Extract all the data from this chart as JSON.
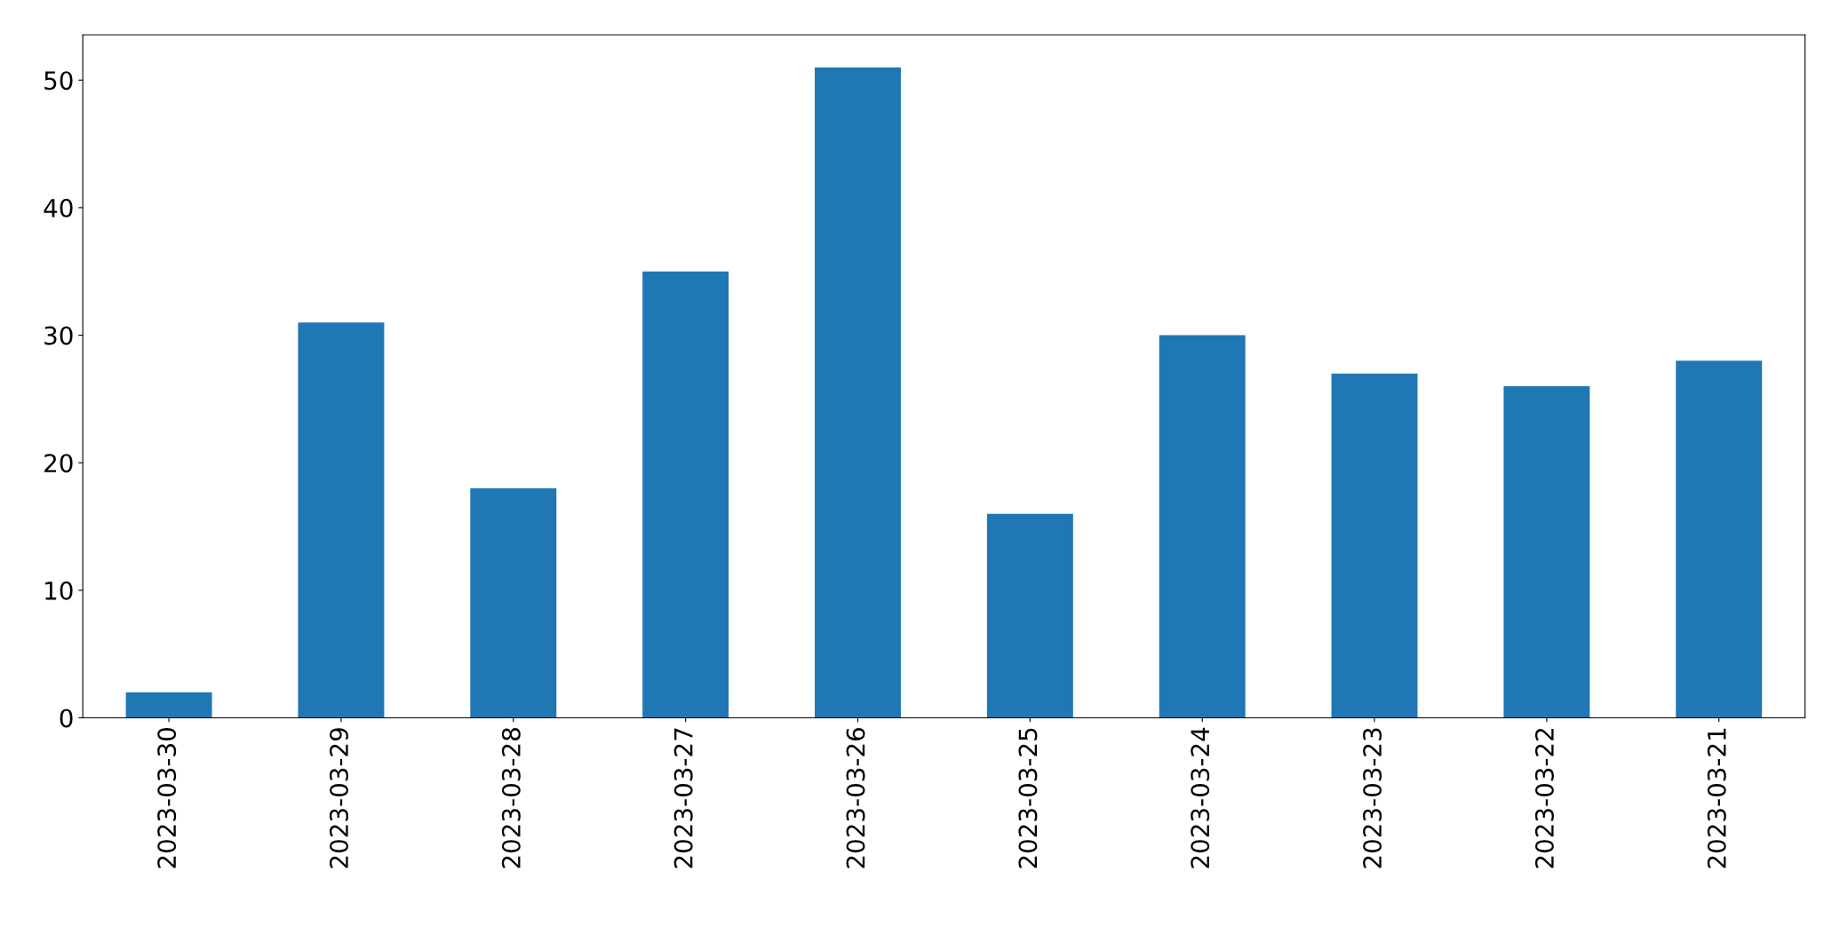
{
  "chart_data": {
    "type": "bar",
    "categories": [
      "2023-03-30",
      "2023-03-29",
      "2023-03-28",
      "2023-03-27",
      "2023-03-26",
      "2023-03-25",
      "2023-03-24",
      "2023-03-23",
      "2023-03-22",
      "2023-03-21"
    ],
    "values": [
      2,
      31,
      18,
      35,
      51,
      16,
      30,
      27,
      26,
      28
    ],
    "color": "#1f77b4",
    "ylim": [
      0,
      53.55
    ],
    "yticks": [
      0,
      10,
      20,
      30,
      40,
      50
    ],
    "grid": false,
    "legend": false
  }
}
